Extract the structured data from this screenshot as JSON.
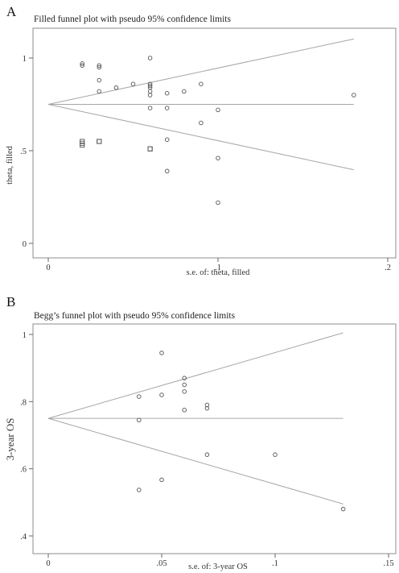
{
  "chart_data": [
    {
      "panel": "A",
      "type": "scatter",
      "title": "Filled funnel plot with pseudo 95% confidence limits",
      "xlabel": "s.e. of: theta, filled",
      "ylabel": "theta, filled",
      "xlim": [
        0,
        0.2
      ],
      "ylim": [
        0,
        1
      ],
      "xticks": [
        {
          "value": 0,
          "label": "0"
        },
        {
          "value": 0.1,
          "label": ".1"
        },
        {
          "value": 0.2,
          "label": ".2"
        }
      ],
      "yticks": [
        {
          "value": 0,
          "label": "0"
        },
        {
          "value": 0.5,
          "label": ".5"
        },
        {
          "value": 1,
          "label": "1"
        }
      ],
      "pooled": 0.75,
      "funnel_xmax": 0.18,
      "grid": false,
      "series": [
        {
          "marker": "circle",
          "x": [
            0.02,
            0.02,
            0.03,
            0.03,
            0.03,
            0.03,
            0.04,
            0.05,
            0.06,
            0.06,
            0.06,
            0.06,
            0.06,
            0.06,
            0.06,
            0.07,
            0.07,
            0.07,
            0.07,
            0.08,
            0.09,
            0.09,
            0.1,
            0.1,
            0.1,
            0.18
          ],
          "y": [
            0.97,
            0.96,
            0.96,
            0.95,
            0.88,
            0.82,
            0.84,
            0.86,
            1.0,
            0.86,
            0.84,
            0.82,
            0.8,
            0.73,
            0.85,
            0.81,
            0.73,
            0.56,
            0.39,
            0.82,
            0.86,
            0.65,
            0.72,
            0.46,
            0.22,
            0.8
          ]
        },
        {
          "marker": "square",
          "x": [
            0.02,
            0.02,
            0.02,
            0.03,
            0.03,
            0.06,
            0.06
          ],
          "y": [
            0.55,
            0.54,
            0.53,
            0.55,
            0.55,
            0.51,
            0.51
          ]
        }
      ]
    },
    {
      "panel": "B",
      "type": "scatter",
      "title": "Begg’s funnel plot with pseudo 95% confidence limits",
      "xlabel": "s.e. of: 3-year OS",
      "ylabel": "3-year OS",
      "xlim": [
        0,
        0.15
      ],
      "ylim": [
        0.4,
        1
      ],
      "xticks": [
        {
          "value": 0,
          "label": "0"
        },
        {
          "value": 0.05,
          "label": ".05"
        },
        {
          "value": 0.1,
          "label": ".1"
        },
        {
          "value": 0.15,
          "label": ".15"
        }
      ],
      "yticks": [
        {
          "value": 0.4,
          "label": ".4"
        },
        {
          "value": 0.6,
          "label": ".6"
        },
        {
          "value": 0.8,
          "label": ".8"
        },
        {
          "value": 1,
          "label": "1"
        }
      ],
      "pooled": 0.75,
      "funnel_xmax": 0.13,
      "grid": false,
      "series": [
        {
          "marker": "circle",
          "x": [
            0.04,
            0.04,
            0.04,
            0.05,
            0.05,
            0.05,
            0.06,
            0.06,
            0.06,
            0.06,
            0.07,
            0.07,
            0.07,
            0.1,
            0.13
          ],
          "y": [
            0.815,
            0.745,
            0.537,
            0.945,
            0.82,
            0.567,
            0.87,
            0.85,
            0.83,
            0.775,
            0.79,
            0.78,
            0.642,
            0.642,
            0.48
          ]
        }
      ]
    }
  ]
}
